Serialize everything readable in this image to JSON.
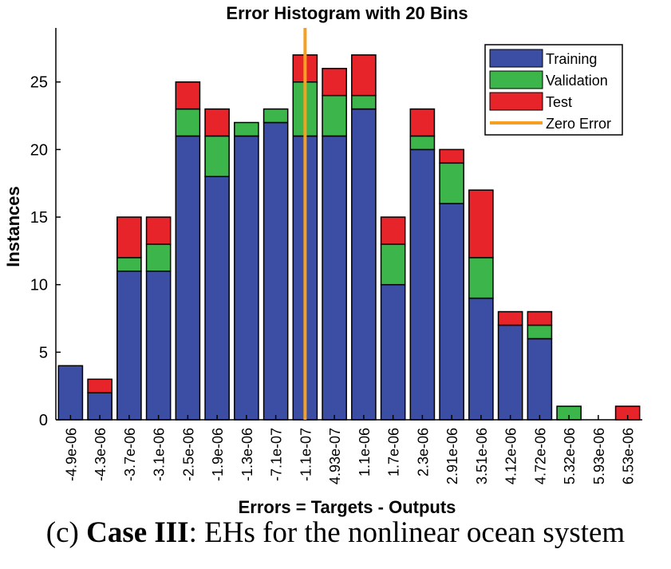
{
  "chart_data": {
    "type": "bar",
    "stacked": true,
    "title": "Error Histogram with 20 Bins",
    "xlabel": "Errors = Targets - Outputs",
    "ylabel": "Instances",
    "ylim": [
      0,
      29
    ],
    "yticks": [
      "0",
      "5",
      "10",
      "15",
      "20",
      "25"
    ],
    "grid": false,
    "legend_position": "top-right",
    "categories": [
      "-4.9e-06",
      "-4.3e-06",
      "-3.7e-06",
      "-3.1e-06",
      "-2.5e-06",
      "-1.9e-06",
      "-1.3e-06",
      "-7.1e-07",
      "-1.1e-07",
      "4.93e-07",
      "1.1e-06",
      "1.7e-06",
      "2.3e-06",
      "2.91e-06",
      "3.51e-06",
      "4.12e-06",
      "4.72e-06",
      "5.32e-06",
      "5.93e-06",
      "6.53e-06"
    ],
    "series": [
      {
        "name": "Training",
        "color": "#3b4ea3",
        "values": [
          4,
          2,
          11,
          11,
          21,
          18,
          21,
          22,
          21,
          21,
          23,
          10,
          20,
          16,
          9,
          7,
          6,
          0,
          0,
          0
        ]
      },
      {
        "name": "Validation",
        "color": "#3cb54a",
        "values": [
          0,
          0,
          1,
          2,
          2,
          3,
          1,
          1,
          4,
          3,
          1,
          3,
          1,
          3,
          3,
          0,
          1,
          1,
          0,
          0
        ]
      },
      {
        "name": "Test",
        "color": "#e8242b",
        "values": [
          0,
          1,
          3,
          2,
          2,
          2,
          0,
          0,
          2,
          2,
          3,
          2,
          2,
          1,
          5,
          1,
          1,
          0,
          0,
          1
        ]
      }
    ],
    "zero_error": {
      "name": "Zero Error",
      "color": "#f5a020",
      "x_index": 8.5
    }
  },
  "caption": {
    "prefix": "(c) ",
    "bold": "Case III",
    "rest": ": EHs for the nonlinear ocean system"
  }
}
